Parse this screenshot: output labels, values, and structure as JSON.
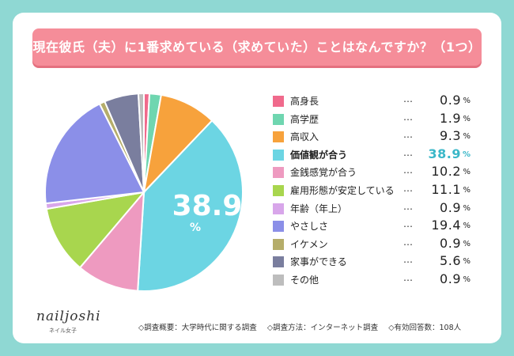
{
  "title": "現在彼氏（夫）に1番求めている（求めていた）ことはなんですか？（1つ）",
  "chart_data": {
    "type": "pie",
    "title": "現在彼氏（夫）に1番求めている（求めていた）ことはなんですか？（1つ）",
    "highlight_value": "38.9",
    "highlight_unit": "%",
    "slices": [
      {
        "label": "高身長",
        "value": 0.9,
        "display": "0.9",
        "color": "#f06a8c"
      },
      {
        "label": "高学歴",
        "value": 1.9,
        "display": "1.9",
        "color": "#6fd6b0"
      },
      {
        "label": "高収入",
        "value": 9.3,
        "display": "9.3",
        "color": "#f7a23c"
      },
      {
        "label": "価値観が合う",
        "value": 38.9,
        "display": "38.9",
        "color": "#6cd5e3",
        "highlight": true
      },
      {
        "label": "金銭感覚が合う",
        "value": 10.2,
        "display": "10.2",
        "color": "#ee9ac0"
      },
      {
        "label": "雇用形態が安定している",
        "value": 11.1,
        "display": "11.1",
        "color": "#a8d64e"
      },
      {
        "label": "年齢（年上）",
        "value": 0.9,
        "display": "0.9",
        "color": "#d8a6ea"
      },
      {
        "label": "やさしさ",
        "value": 19.4,
        "display": "19.4",
        "color": "#8b8fe8"
      },
      {
        "label": "イケメン",
        "value": 0.9,
        "display": "0.9",
        "color": "#b5ad6a"
      },
      {
        "label": "家事ができる",
        "value": 5.6,
        "display": "5.6",
        "color": "#7a7e9e"
      },
      {
        "label": "その他",
        "value": 0.9,
        "display": "0.9",
        "color": "#bdbdbd"
      }
    ],
    "dots": "…",
    "unit": "%"
  },
  "footer": {
    "summary": "◇調査概要：大学時代に関する調査",
    "method": "◇調査方法：インターネット調査",
    "count": "◇有効回答数：108人"
  },
  "logo": {
    "name": "nailjoshi",
    "sub": "ネイル女子"
  }
}
